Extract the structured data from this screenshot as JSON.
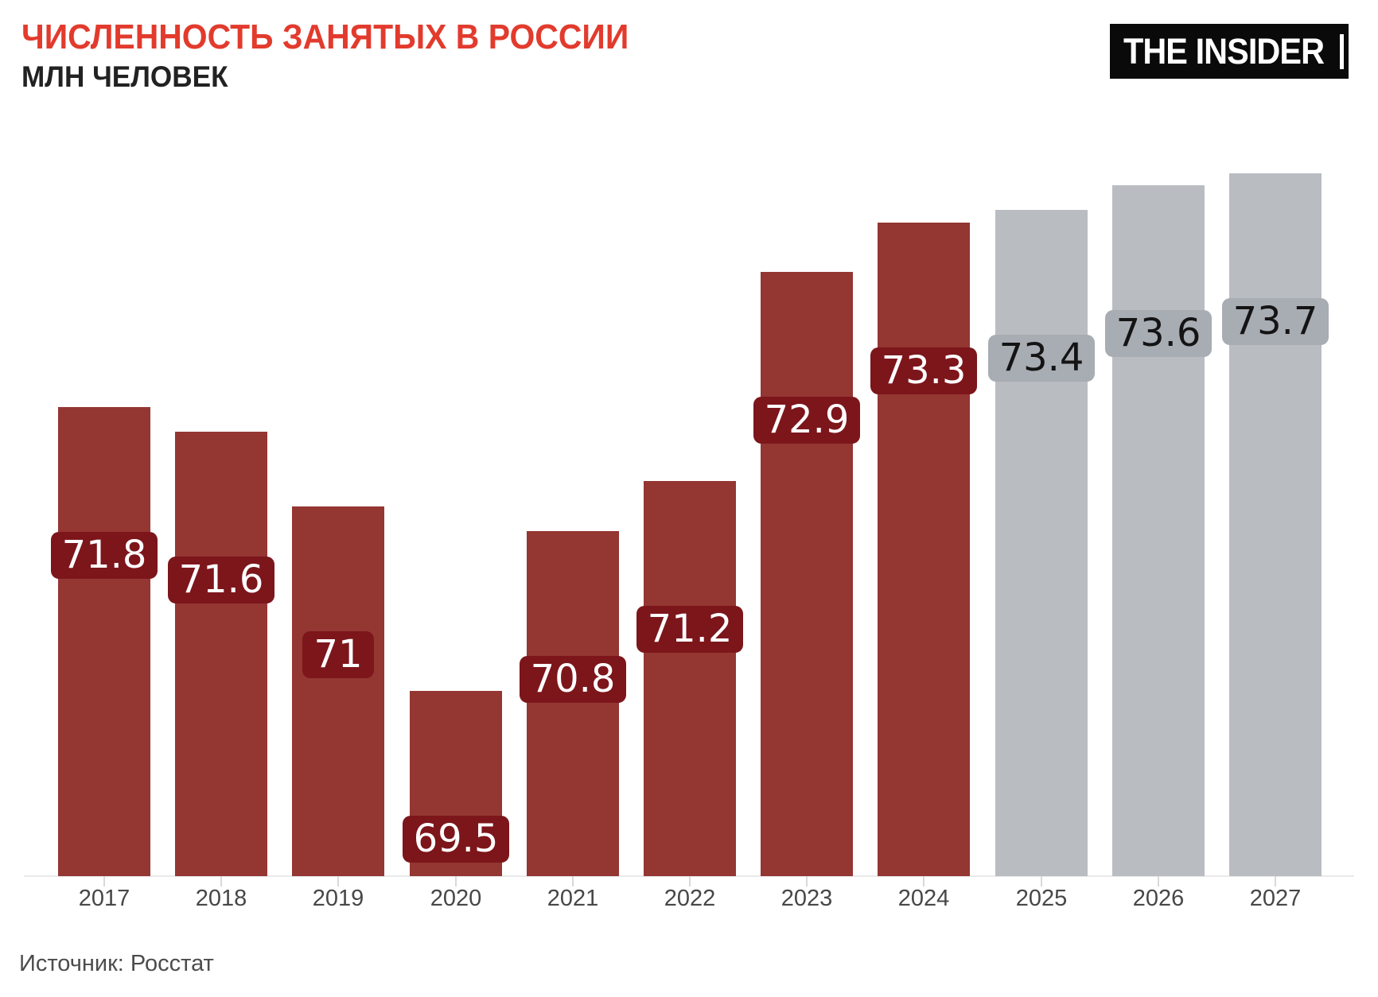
{
  "header": {
    "title": "ЧИСЛЕННОСТЬ ЗАНЯТЫХ В РОССИИ",
    "subtitle": "МЛН ЧЕЛОВЕК",
    "title_color": "#e23b2d"
  },
  "logo": {
    "text": "THE INSIDER"
  },
  "footer": {
    "source": "Источник: Росстат"
  },
  "colors": {
    "bar_actual": "#943632",
    "badge_actual": "#7c161b",
    "badge_text_actual": "#ffffff",
    "bar_forecast": "#b9bdc2",
    "badge_forecast": "#a8acb3",
    "badge_text_forecast": "#141414"
  },
  "chart_data": {
    "type": "bar",
    "title": "ЧИСЛЕННОСТЬ ЗАНЯТЫХ В РОССИИ",
    "subtitle": "МЛН ЧЕЛОВЕК",
    "xlabel": "",
    "ylabel": "млн человек",
    "categories": [
      "2017",
      "2018",
      "2019",
      "2020",
      "2021",
      "2022",
      "2023",
      "2024",
      "2025",
      "2026",
      "2027"
    ],
    "series": [
      {
        "name": "Численность занятых",
        "values": [
          71.8,
          71.6,
          71,
          69.5,
          70.8,
          71.2,
          72.9,
          73.3,
          73.4,
          73.6,
          73.7
        ],
        "labels": [
          "71.8",
          "71.6",
          "71",
          "69.5",
          "70.8",
          "71.2",
          "72.9",
          "73.3",
          "73.4",
          "73.6",
          "73.7"
        ],
        "forecast": [
          false,
          false,
          false,
          false,
          false,
          false,
          false,
          false,
          true,
          true,
          true
        ]
      }
    ],
    "ylim": [
      68.0,
      74.2
    ],
    "grid": false,
    "legend": "none",
    "source": "Источник: Росстат"
  }
}
